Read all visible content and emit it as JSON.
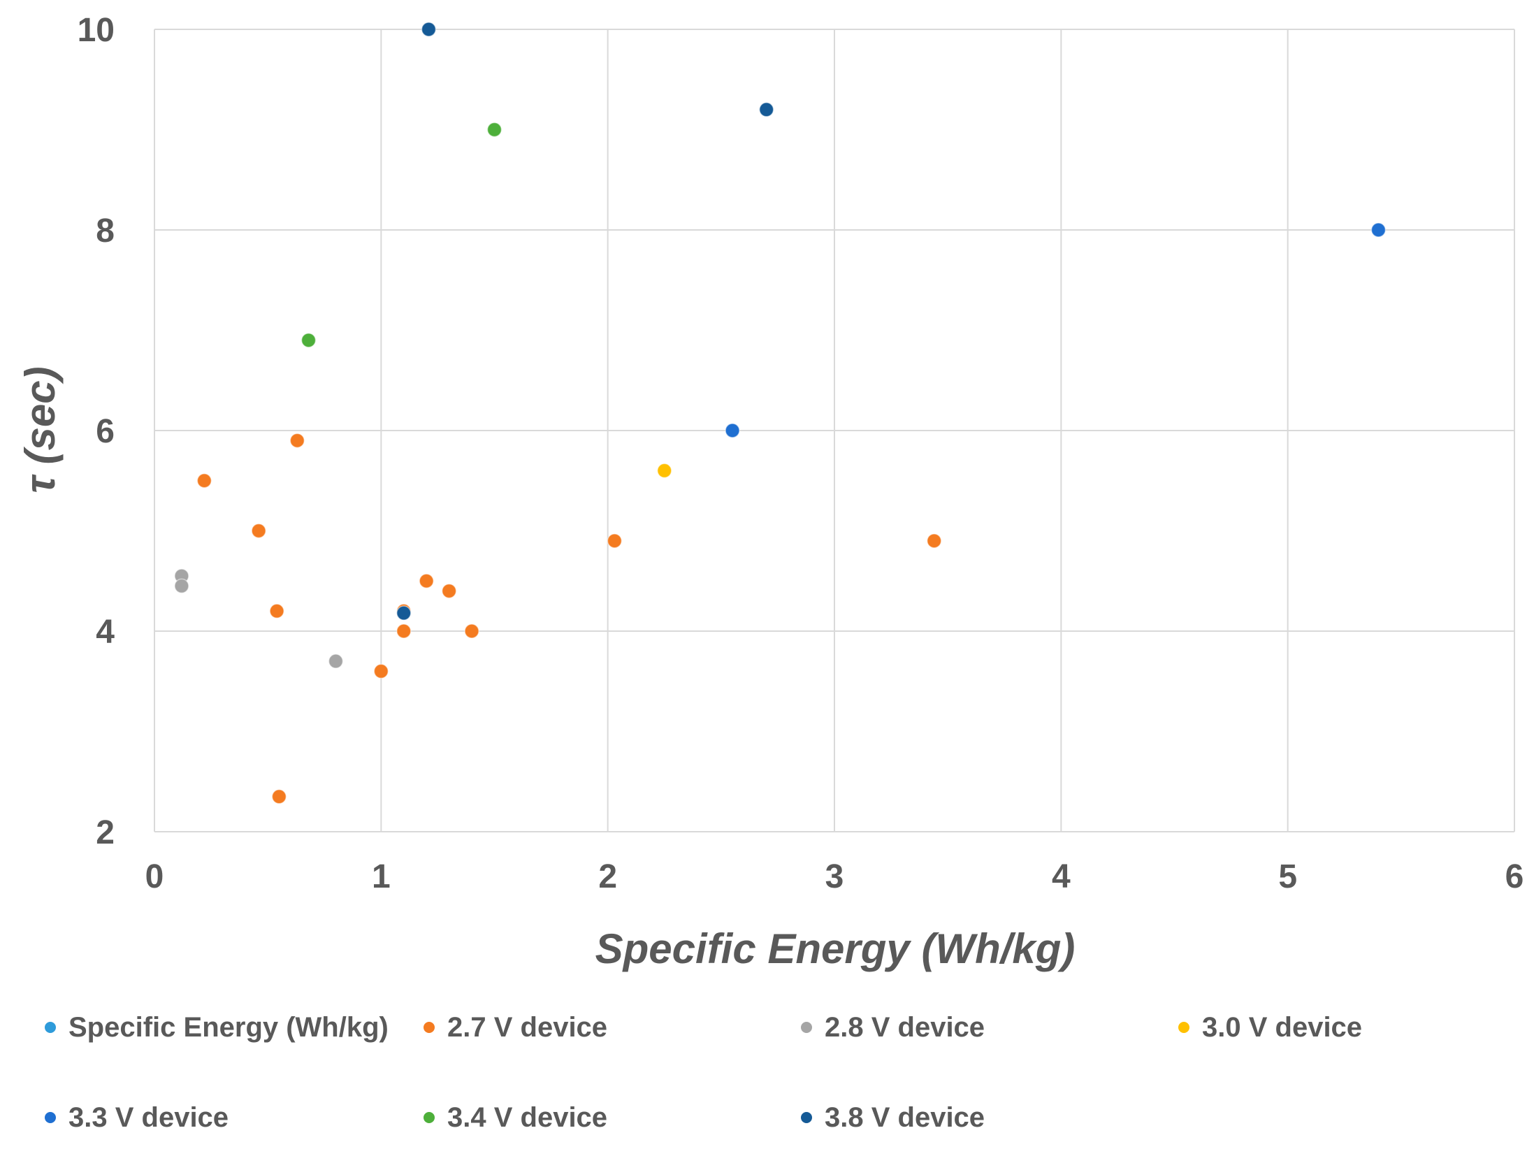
{
  "chart_data": {
    "type": "scatter",
    "xlabel": "Specific Energy (Wh/kg)",
    "ylabel": "τ (sec)",
    "xlim": [
      0,
      6
    ],
    "ylim": [
      2,
      10
    ],
    "xticks": [
      "0",
      "1",
      "2",
      "3",
      "4",
      "5",
      "6"
    ],
    "yticks": [
      "2",
      "4",
      "6",
      "8",
      "10"
    ],
    "grid": true,
    "legend_position": "bottom",
    "series": [
      {
        "name": "Specific Energy (Wh/kg)",
        "color": "#2E9BDA",
        "points": []
      },
      {
        "name": "2.7 V device",
        "color": "#F47B20",
        "points": [
          [
            0.22,
            5.5
          ],
          [
            0.46,
            5.0
          ],
          [
            0.54,
            4.2
          ],
          [
            0.63,
            5.9
          ],
          [
            0.55,
            2.35
          ],
          [
            1.0,
            3.6
          ],
          [
            1.1,
            4.0
          ],
          [
            1.1,
            4.2
          ],
          [
            1.2,
            4.5
          ],
          [
            1.3,
            4.4
          ],
          [
            1.4,
            4.0
          ],
          [
            2.03,
            4.9
          ],
          [
            3.44,
            4.9
          ]
        ]
      },
      {
        "name": "2.8 V device",
        "color": "#A5A5A5",
        "points": [
          [
            0.12,
            4.55
          ],
          [
            0.12,
            4.45
          ],
          [
            0.8,
            3.7
          ]
        ]
      },
      {
        "name": "3.0 V device",
        "color": "#FFC000",
        "points": [
          [
            2.25,
            5.6
          ]
        ]
      },
      {
        "name": "3.3 V device",
        "color": "#1F6FD1",
        "points": [
          [
            2.55,
            6.0
          ],
          [
            5.4,
            8.0
          ]
        ]
      },
      {
        "name": "3.4 V device",
        "color": "#4DAF3A",
        "points": [
          [
            0.68,
            6.9
          ],
          [
            1.5,
            9.0
          ]
        ]
      },
      {
        "name": "3.8 V device",
        "color": "#155A96",
        "points": [
          [
            1.21,
            10.0
          ],
          [
            2.7,
            9.2
          ],
          [
            1.1,
            4.18
          ]
        ]
      }
    ]
  }
}
